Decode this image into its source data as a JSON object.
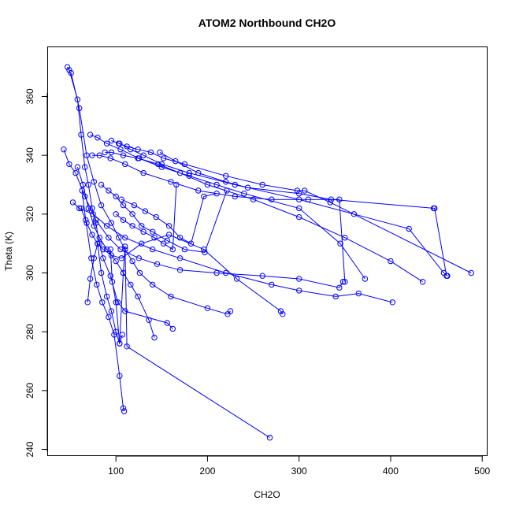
{
  "chart_data": {
    "type": "line",
    "title": "ATOM2 Northbound CH2O",
    "xlabel": "CH2O",
    "ylabel": "Theta (K)",
    "xlim": [
      25,
      505
    ],
    "ylim": [
      238,
      377
    ],
    "x_ticks": [
      100,
      200,
      300,
      400,
      500
    ],
    "y_ticks": [
      240,
      260,
      280,
      300,
      320,
      340,
      360
    ],
    "x_tick_labels": [
      "100",
      "200",
      "300",
      "400",
      "500"
    ],
    "y_tick_labels": [
      "240",
      "260",
      "280",
      "300",
      "320",
      "340",
      "360"
    ],
    "grid": false,
    "legend": "none",
    "color": "#0000ff",
    "series": [
      {
        "x": [
          47,
          49,
          58,
          62,
          66,
          70,
          74,
          78,
          82,
          86,
          94,
          102,
          110,
          156,
          162
        ],
        "y": [
          370,
          369,
          359,
          347,
          336,
          330,
          322,
          317,
          310,
          305,
          299,
          290,
          287,
          283,
          281
        ]
      },
      {
        "x": [
          51,
          60,
          68,
          76,
          84,
          95,
          103,
          110,
          118,
          126,
          140,
          160,
          200,
          222,
          225
        ],
        "y": [
          368,
          356,
          340,
          331,
          323,
          317,
          312,
          308,
          304,
          300,
          296,
          292,
          288,
          286,
          287
        ]
      },
      {
        "x": [
          43,
          49,
          56,
          66,
          78,
          92,
          105,
          125,
          145,
          170,
          210,
          260,
          300,
          344,
          348
        ],
        "y": [
          342,
          337,
          334,
          326,
          318,
          312,
          308,
          305,
          303,
          301,
          300,
          299,
          298,
          295,
          297
        ]
      },
      {
        "x": [
          53,
          60,
          75,
          90,
          110,
          140,
          170,
          220,
          270,
          300,
          340,
          365,
          402
        ],
        "y": [
          324,
          322,
          320,
          316,
          312,
          308,
          305,
          300,
          296,
          294,
          292,
          293,
          290
        ]
      },
      {
        "x": [
          72,
          80,
          90,
          105,
          125,
          150,
          180,
          210,
          240,
          300,
          345,
          372
        ],
        "y": [
          347,
          346,
          344,
          342,
          339,
          336,
          333,
          330,
          327,
          322,
          310,
          298
        ]
      },
      {
        "x": [
          74,
          82,
          94,
          110,
          130,
          160,
          190,
          230,
          270,
          310,
          344,
          350
        ],
        "y": [
          340,
          340,
          339,
          337,
          334,
          331,
          328,
          326,
          325,
          325,
          325,
          297
        ]
      },
      {
        "x": [
          88,
          95,
          108,
          124,
          146,
          170,
          200,
          250,
          300,
          350,
          400,
          435
        ],
        "y": [
          341,
          341,
          340,
          339,
          337,
          334,
          330,
          325,
          319,
          312,
          304,
          297
        ]
      },
      {
        "x": [
          95,
          104,
          116,
          130,
          150,
          180,
          230,
          300,
          360,
          420,
          458,
          462
        ],
        "y": [
          345,
          344,
          342,
          340,
          337,
          334,
          330,
          325,
          320,
          315,
          300,
          299
        ]
      },
      {
        "x": [
          103,
          112,
          124,
          138,
          152,
          175,
          220,
          260,
          298,
          306,
          334,
          488
        ],
        "y": [
          344,
          343,
          342,
          341,
          339,
          337,
          333,
          330,
          328,
          328,
          324,
          300
        ]
      },
      {
        "x": [
          148,
          165,
          190,
          220,
          244,
          300,
          335,
          447,
          448,
          461
        ],
        "y": [
          341,
          338,
          334,
          331,
          329,
          327,
          325,
          322,
          322,
          299
        ]
      },
      {
        "x": [
          58,
          64,
          70,
          76,
          82,
          90,
          100,
          108,
          116,
          124,
          136,
          142
        ],
        "y": [
          336,
          330,
          322,
          316,
          312,
          308,
          304,
          300,
          296,
          292,
          284,
          278
        ]
      },
      {
        "x": [
          62,
          68,
          74,
          80,
          86,
          95,
          106,
          128,
          158,
          196,
          232,
          280,
          282
        ],
        "y": [
          322,
          317,
          313,
          310,
          308,
          306,
          305,
          310,
          313,
          308,
          298,
          287,
          286
        ]
      },
      {
        "x": [
          84,
          92,
          100,
          108,
          118,
          128,
          140,
          156,
          175,
          197,
          221
        ],
        "y": [
          330,
          328,
          326,
          323,
          320,
          316,
          314,
          311,
          308,
          307,
          328
        ]
      },
      {
        "x": [
          100,
          108,
          118,
          130,
          142,
          152,
          162,
          166
        ],
        "y": [
          320,
          318,
          316,
          314,
          312,
          310,
          308,
          330
        ]
      },
      {
        "x": [
          106,
          120,
          132,
          144,
          158,
          170,
          182,
          196,
          210
        ],
        "y": [
          325,
          323,
          321,
          319,
          316,
          312,
          310,
          326,
          327
        ]
      },
      {
        "x": [
          63,
          67,
          73,
          79,
          85,
          92,
          98,
          104,
          108,
          109
        ],
        "y": [
          328,
          318,
          305,
          296,
          290,
          285,
          279,
          265,
          254,
          253
        ]
      },
      {
        "x": [
          69,
          72,
          76,
          80,
          84,
          90,
          95,
          100,
          104,
          107
        ],
        "y": [
          290,
          298,
          305,
          310,
          300,
          292,
          287,
          280,
          276,
          279
        ]
      },
      {
        "x": [
          94,
          96,
          100,
          104,
          108,
          110,
          112,
          268
        ],
        "y": [
          308,
          297,
          290,
          276,
          300,
          309,
          275,
          244
        ]
      }
    ]
  }
}
